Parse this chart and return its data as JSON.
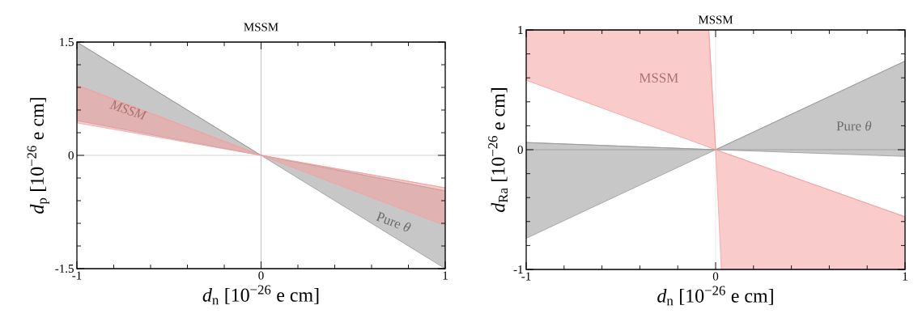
{
  "chart_data": [
    {
      "type": "line",
      "title": "MSSM",
      "xlabel": "*d*$_{n}$ [10$^{−26}$ e cm]",
      "ylabel": "*d*$_{p}$ [10$^{−26}$ e cm]",
      "xlim": [
        -1,
        1
      ],
      "ylim": [
        -1.5,
        1.5
      ],
      "xticks": [
        -1,
        0,
        1
      ],
      "yticks": [
        -1.5,
        0,
        1.5
      ],
      "grid": false,
      "marker": "none",
      "ref_lines": [
        {
          "axis": "x",
          "value": 0,
          "color": "#999999"
        },
        {
          "axis": "y",
          "value": 0,
          "color": "#bbbbbb"
        }
      ],
      "series": [
        {
          "name": "Pure *θ*",
          "color": "#999999",
          "x": [
            -1,
            0,
            1
          ],
          "values": [
            1.5,
            0,
            -0.47
          ],
          "lower": [
            0.46,
            0,
            -1.5
          ],
          "upper": [
            1.5,
            0,
            -0.47
          ]
        },
        {
          "name": "*MSSM*",
          "color": "#f4a0a0",
          "x": [
            -1,
            0,
            1
          ],
          "values": [
            0.93,
            0,
            -0.43
          ],
          "lower": [
            0.43,
            0,
            -0.93
          ],
          "upper": [
            0.93,
            0,
            -0.43
          ]
        }
      ]
    },
    {
      "type": "line",
      "title": "MSSM",
      "xlabel": "*d*$_{n}$ [10$^{−26}$ e cm]",
      "ylabel": "*d*$_{Ra}$ [10$^{−26}$ e cm]",
      "xlim": [
        -1,
        1
      ],
      "ylim": [
        -1,
        1
      ],
      "xticks": [
        -1,
        0,
        1
      ],
      "yticks": [
        -1,
        0,
        1
      ],
      "grid": false,
      "marker": "none",
      "ref_lines": [
        {
          "axis": "x",
          "value": 0,
          "color": "#dddddd"
        },
        {
          "axis": "y",
          "value": 0,
          "color": "#777777"
        }
      ],
      "series": [
        {
          "name": "Pure *θ*",
          "color": "#999999",
          "x": [
            -1,
            0,
            1
          ],
          "values": [
            0.06,
            0,
            0.74
          ],
          "lower": [
            -0.74,
            0,
            -0.056
          ],
          "upper": [
            0.06,
            0,
            0.74
          ]
        },
        {
          "name": "MSSM",
          "color": "#f4a0a0",
          "x": [
            -1,
            -0.036,
            0,
            0.03,
            1
          ],
          "values": [
            1,
            1,
            0,
            -0.017,
            -0.56
          ],
          "lower": [
            0.58,
            0.021,
            0,
            -1,
            -1
          ],
          "upper": [
            1,
            1,
            0,
            -0.017,
            -0.56
          ]
        }
      ]
    }
  ]
}
